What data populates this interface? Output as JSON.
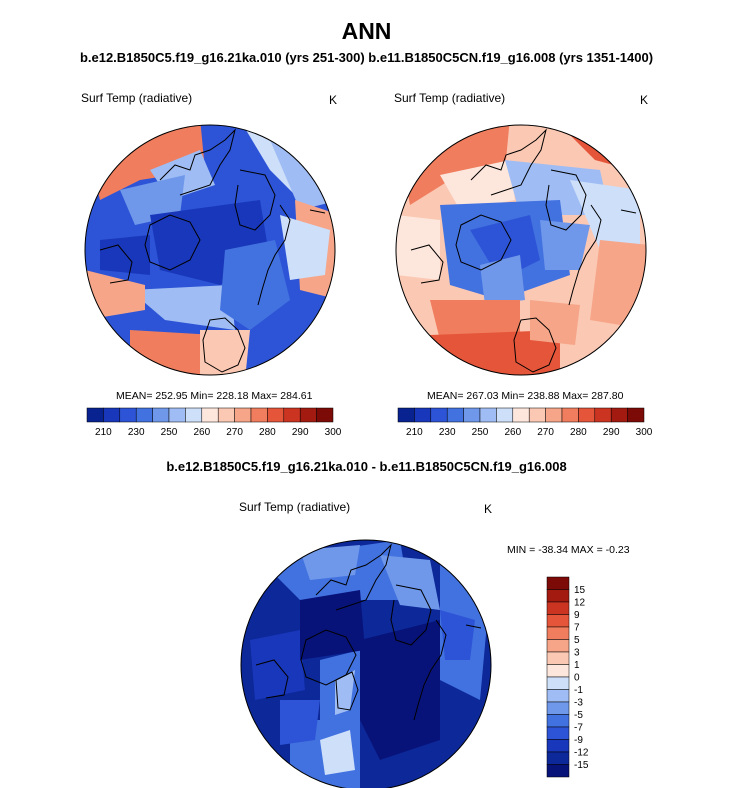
{
  "chart_data": [
    {
      "type": "heatmap",
      "projection": "polar-stereographic-north",
      "title": "Surf Temp (radiative)",
      "units": "K",
      "case": "b.e12.B1850C5.f19_g16.21ka.010 (yrs 251-300)",
      "stats": {
        "mean": 252.95,
        "min": 228.18,
        "max": 284.61
      },
      "stats_text": "MEAN= 252.95  Min= 228.18  Max= 284.61",
      "colorbar": {
        "levels": [
          210,
          230,
          250,
          260,
          270,
          280,
          290,
          300
        ],
        "colors": [
          "#08228f",
          "#1937ba",
          "#2d54d6",
          "#4272e0",
          "#6f98eb",
          "#9fbdf4",
          "#cddff9",
          "#fde6dc",
          "#fbc8b3",
          "#f6a588",
          "#f07e5e",
          "#e5553a",
          "#cc3422",
          "#a31a10",
          "#7c0a06"
        ],
        "tick_labels": [
          "210",
          "230",
          "250",
          "260",
          "270",
          "280",
          "290",
          "300"
        ]
      }
    },
    {
      "type": "heatmap",
      "projection": "polar-stereographic-north",
      "title": "Surf Temp (radiative)",
      "units": "K",
      "case": "b.e11.B1850C5CN.f19_g16.008 (yrs 1351-1400)",
      "stats": {
        "mean": 267.03,
        "min": 238.88,
        "max": 287.8
      },
      "stats_text": "MEAN= 267.03  Min= 238.88  Max= 287.80",
      "colorbar": {
        "levels": [
          210,
          230,
          250,
          260,
          270,
          280,
          290,
          300
        ],
        "colors": [
          "#08228f",
          "#1937ba",
          "#2d54d6",
          "#4272e0",
          "#6f98eb",
          "#9fbdf4",
          "#cddff9",
          "#fde6dc",
          "#fbc8b3",
          "#f6a588",
          "#f07e5e",
          "#e5553a",
          "#cc3422",
          "#a31a10",
          "#7c0a06"
        ],
        "tick_labels": [
          "210",
          "230",
          "250",
          "260",
          "270",
          "280",
          "290",
          "300"
        ]
      }
    },
    {
      "type": "heatmap",
      "projection": "polar-stereographic-north",
      "title": "Surf Temp (radiative)",
      "units": "K",
      "case": "b.e12.B1850C5.f19_g16.21ka.010 - b.e11.B1850C5CN.f19_g16.008",
      "stats": {
        "min": -38.34,
        "max": -0.23
      },
      "stats_text": "MIN = -38.34 MAX =  -0.23",
      "colorbar": {
        "orientation": "vertical",
        "tick_labels": [
          "15",
          "12",
          "9",
          "7",
          "5",
          "3",
          "1",
          "0",
          "-1",
          "-3",
          "-5",
          "-7",
          "-9",
          "-12",
          "-15"
        ],
        "colors": [
          "#7c0a06",
          "#a31a10",
          "#cc3422",
          "#e5553a",
          "#f07e5e",
          "#f6a588",
          "#fbc8b3",
          "#fde6dc",
          "#cddff9",
          "#9fbdf4",
          "#6f98eb",
          "#4272e0",
          "#2d54d6",
          "#1937ba",
          "#0c2899",
          "#08137a"
        ]
      }
    }
  ],
  "figure": {
    "title": "ANN",
    "subtitle": "b.e12.B1850C5.f19_g16.21ka.010 (yrs 251-300) b.e11.B1850C5CN.f19_g16.008 (yrs 1351-1400)",
    "diff_title": "b.e12.B1850C5.f19_g16.21ka.010 - b.e11.B1850C5CN.f19_g16.008"
  },
  "colors": {
    "ocean_cold": "#2d54d6",
    "deep_blue": "#1937ba",
    "warm": "#f07e5e",
    "outline": "#000000"
  }
}
